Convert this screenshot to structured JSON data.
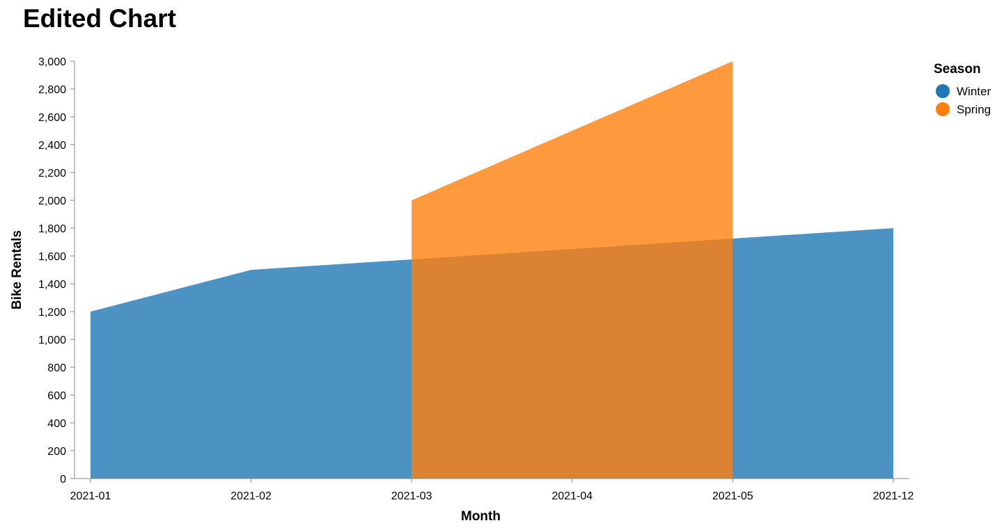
{
  "chart_data": {
    "type": "area",
    "title": "Edited Chart",
    "xlabel": "Month",
    "ylabel": "Bike Rentals",
    "categories": [
      "2021-01",
      "2021-02",
      "2021-03",
      "2021-04",
      "2021-05",
      "2021-12"
    ],
    "ylim": [
      0,
      3000
    ],
    "yticks": [
      0,
      200,
      400,
      600,
      800,
      1000,
      1200,
      1400,
      1600,
      1800,
      2000,
      2200,
      2400,
      2600,
      2800,
      3000
    ],
    "grid": false,
    "legend": {
      "title": "Season",
      "placement": "top-right"
    },
    "series": [
      {
        "name": "Winter",
        "color": "#1f77b4",
        "points": [
          {
            "x": "2021-01",
            "y": 1200
          },
          {
            "x": "2021-02",
            "y": 1500
          },
          {
            "x": "2021-12",
            "y": 1800
          }
        ]
      },
      {
        "name": "Spring",
        "color": "#ff7f0e",
        "points": [
          {
            "x": "2021-03",
            "y": 2000
          },
          {
            "x": "2021-05",
            "y": 3000
          }
        ]
      }
    ]
  }
}
